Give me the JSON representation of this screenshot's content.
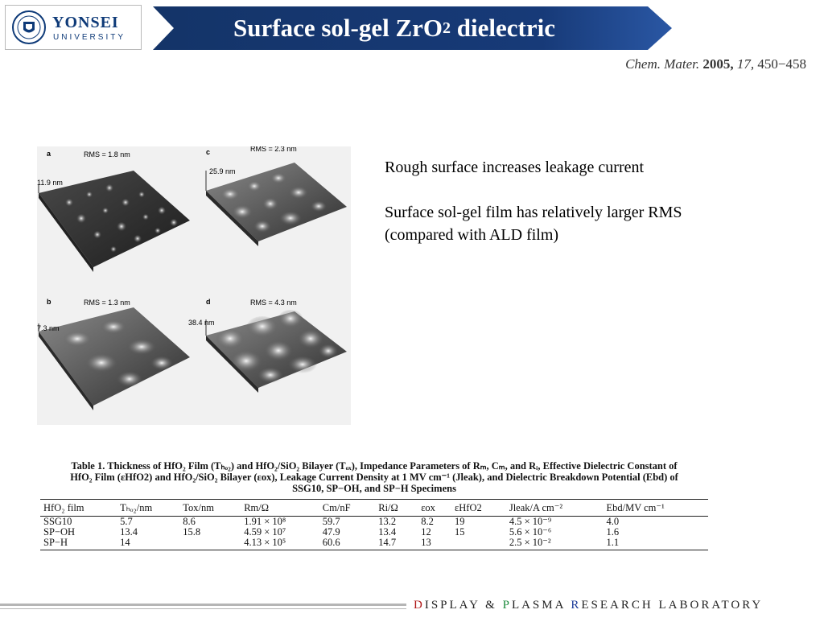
{
  "header": {
    "logo_name": "YONSEI",
    "logo_sub": "UNIVERSITY",
    "title_main": "Surface sol-gel ZrO",
    "title_sub": "2",
    "title_tail": " dielectric",
    "colors": {
      "band": "#173a78",
      "band_light": "#2c5ba8"
    }
  },
  "citation": {
    "journal": "Chem. Mater.",
    "year": "2005,",
    "volume": "17,",
    "pages": "450−458"
  },
  "figure": {
    "panels": [
      {
        "letter": "a",
        "rms": "RMS = 1.8 nm",
        "height": "11.9 nm"
      },
      {
        "letter": "c",
        "rms": "RMS = 2.3 nm",
        "height": "25.9 nm"
      },
      {
        "letter": "b",
        "rms": "RMS = 1.3 nm",
        "height": "7.3 nm"
      },
      {
        "letter": "d",
        "rms": "RMS = 4.3 nm",
        "height": "38.4 nm"
      }
    ]
  },
  "notes": {
    "line1": "Rough surface increases leakage current",
    "line2": "Surface sol-gel film has relatively larger RMS",
    "line3": "(compared with ALD film)"
  },
  "table": {
    "caption_line1": "Table 1. Thickness of HfO₂ Film (Tₕₒ₂) and HfO₂/SiO₂ Bilayer (Tₒₓ), Impedance Parameters of Rₘ, Cₘ, and Rᵢ, Effective Dielectric Constant of",
    "caption_line2": "HfO₂ Film (εHfO2) and HfO₂/SiO₂ Bilayer (εox), Leakage Current Density at 1 MV cm⁻¹ (Jleak), and Dielectric Breakdown Potential (Ebd) of",
    "caption_line3": "SSG10, SP−OH, and SP−H Specimens",
    "headers": [
      "HfO₂ film",
      "Tₕₒ₂/nm",
      "Tox/nm",
      "Rm/Ω",
      "Cm/nF",
      "Ri/Ω",
      "εox",
      "εHfO2",
      "Jleak/A cm⁻²",
      "Ebd/MV cm⁻¹"
    ],
    "rows": [
      [
        "SSG10",
        "5.7",
        "8.6",
        "1.91 × 10⁸",
        "59.7",
        "13.2",
        "8.2",
        "19",
        "4.5 × 10⁻⁹",
        "4.0"
      ],
      [
        "SP−OH",
        "13.4",
        "15.8",
        "4.59 × 10⁷",
        "47.9",
        "13.4",
        "12",
        "15",
        "5.6 × 10⁻⁶",
        "1.6"
      ],
      [
        "SP−H",
        "14",
        "",
        "4.13 × 10⁵",
        "60.6",
        "14.7",
        "13",
        "",
        "2.5 × 10⁻²",
        "1.1"
      ]
    ]
  },
  "footer": {
    "d": "D",
    "isplay": "ISPLAY",
    "amp": "&",
    "p": "P",
    "lasma": "LASMA",
    "r": "R",
    "esearch": "ESEARCH",
    "laboratory": "LABORATORY"
  }
}
